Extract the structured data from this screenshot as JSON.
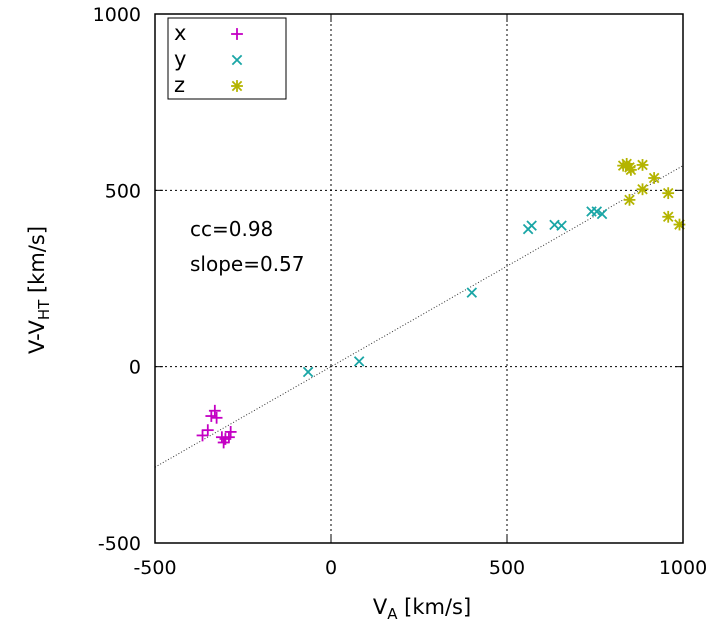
{
  "chart_data": {
    "type": "scatter",
    "title": "",
    "xlabel": "V",
    "xlabel_sub": "A",
    "xlabel_unit": " [km/s]",
    "ylabel": "V-V",
    "ylabel_sub": "HT",
    "ylabel_unit": " [km/s]",
    "xlim": [
      -500,
      1000
    ],
    "ylim": [
      -500,
      1000
    ],
    "xticks": [
      -500,
      0,
      500,
      1000
    ],
    "yticks": [
      -500,
      0,
      500,
      1000
    ],
    "xtick_labels": [
      "-500",
      "0",
      "500",
      "1000"
    ],
    "ytick_labels": [
      "-500",
      "0",
      "500",
      "1000"
    ],
    "grid": "dotted lines at 0 and 500",
    "legend_position": "top-left",
    "annotations": [
      "cc=0.98",
      "slope=0.57"
    ],
    "fit_line": {
      "slope": 0.57,
      "intercept": 0
    },
    "series": [
      {
        "name": "x",
        "marker": "plus",
        "color": "#c400c4",
        "points": [
          [
            -365,
            -195
          ],
          [
            -350,
            -180
          ],
          [
            -340,
            -140
          ],
          [
            -330,
            -125
          ],
          [
            -325,
            -145
          ],
          [
            -310,
            -200
          ],
          [
            -305,
            -215
          ],
          [
            -300,
            -205
          ],
          [
            -290,
            -200
          ],
          [
            -285,
            -185
          ]
        ]
      },
      {
        "name": "y",
        "marker": "cross",
        "color": "#1aa6a6",
        "points": [
          [
            -65,
            -15
          ],
          [
            80,
            15
          ],
          [
            400,
            210
          ],
          [
            560,
            390
          ],
          [
            570,
            400
          ],
          [
            635,
            402
          ],
          [
            655,
            400
          ],
          [
            740,
            440
          ],
          [
            755,
            440
          ],
          [
            770,
            433
          ]
        ]
      },
      {
        "name": "z",
        "marker": "star",
        "color": "#b4b400",
        "points": [
          [
            830,
            570
          ],
          [
            840,
            575
          ],
          [
            848,
            565
          ],
          [
            852,
            558
          ],
          [
            885,
            572
          ],
          [
            848,
            473
          ],
          [
            885,
            503
          ],
          [
            918,
            535
          ],
          [
            958,
            492
          ],
          [
            958,
            425
          ],
          [
            990,
            403
          ]
        ]
      }
    ]
  }
}
